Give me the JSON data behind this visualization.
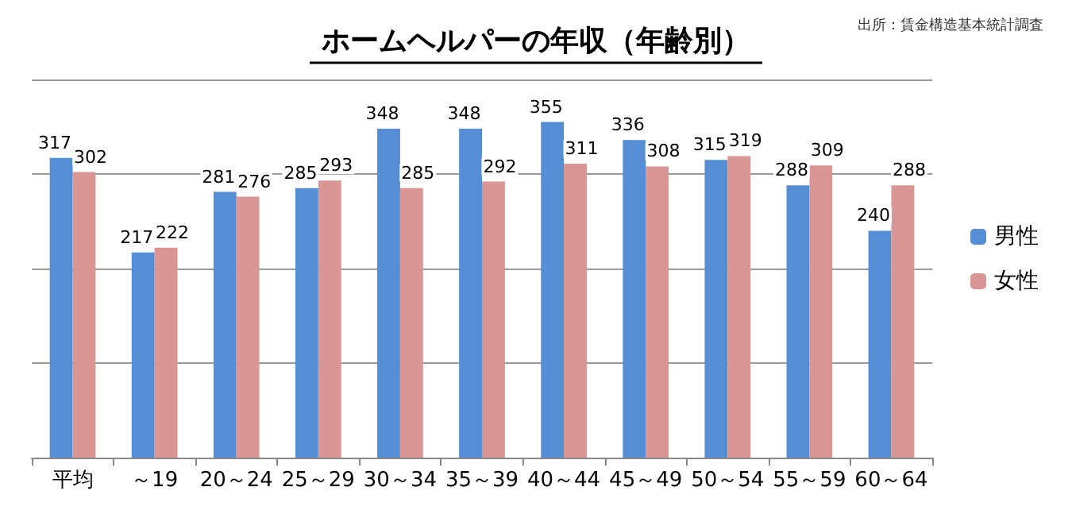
{
  "chart_data": {
    "type": "bar",
    "title": "ホームヘルパーの年収（年齢別）",
    "categories": [
      "平均",
      "～19",
      "20～24",
      "25～29",
      "30～34",
      "35～39",
      "40～44",
      "45～49",
      "50～54",
      "55～59",
      "60～64"
    ],
    "series": [
      {
        "name": "男性",
        "color": "#558ed5",
        "values": [
          317,
          217,
          281,
          285,
          348,
          348,
          355,
          336,
          315,
          288,
          240
        ]
      },
      {
        "name": "女性",
        "color": "#d99694",
        "values": [
          302,
          222,
          276,
          293,
          285,
          292,
          311,
          308,
          319,
          309,
          288
        ]
      }
    ],
    "ylim": [
      0,
      400
    ],
    "yticks": [
      {
        "value": 0,
        "label": null
      },
      {
        "value": 100,
        "label": null
      },
      {
        "value": 200,
        "label": null
      },
      {
        "value": 300,
        "label": null
      },
      {
        "value": 400,
        "label": null
      }
    ],
    "tick_labels": "x",
    "grid": "y",
    "legend": "right",
    "data_labels": true,
    "annotations": [
      "出所：賃金構造基本統計調査"
    ]
  }
}
